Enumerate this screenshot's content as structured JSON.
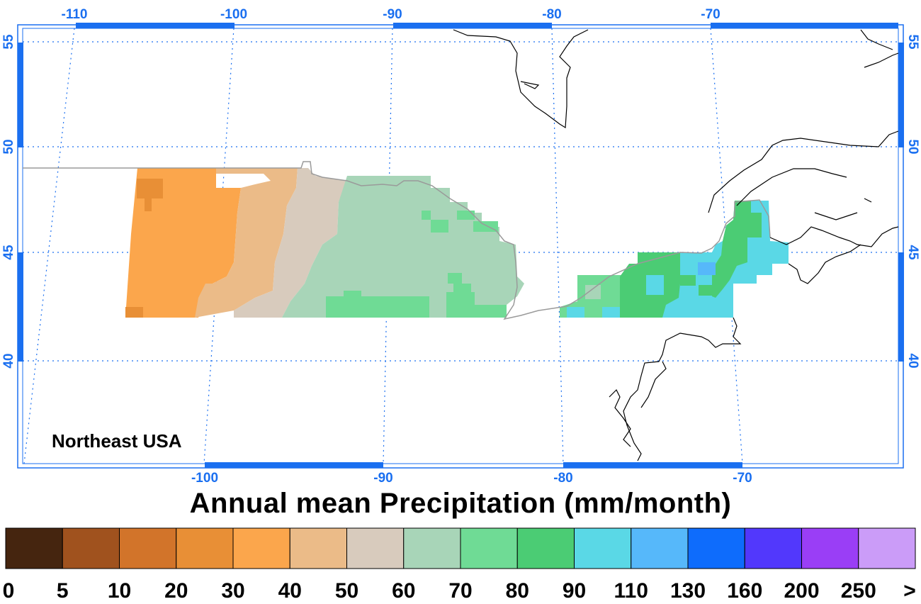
{
  "map": {
    "region_label": "Northeast USA",
    "top_lon_ticks": [
      "-110",
      "-100",
      "-90",
      "-80",
      "-70"
    ],
    "bottom_lon_ticks": [
      "-100",
      "-90",
      "-80",
      "-70"
    ],
    "lat_ticks": [
      "55",
      "50",
      "45",
      "40"
    ],
    "colors": {
      "axis": "#1a6ff0",
      "grid": "#1a6ff0",
      "coastline": "#000000",
      "border": "#9a9a9a"
    }
  },
  "title": "Annual mean Precipitation (mm/month)",
  "colorbar": {
    "colors": [
      "#45250f",
      "#a0521e",
      "#d2742a",
      "#e88f36",
      "#fba64c",
      "#ebbb88",
      "#d8cbbd",
      "#a8d5b8",
      "#6fdb95",
      "#4bcc74",
      "#5ad8e6",
      "#56b8fa",
      "#0e6cfc",
      "#5238fc",
      "#9a3ef6",
      "#cb9cf8"
    ],
    "labels": [
      "0",
      "5",
      "10",
      "20",
      "30",
      "40",
      "50",
      "60",
      "70",
      "80",
      "90",
      "110",
      "130",
      "160",
      "200",
      "250",
      ">"
    ]
  }
}
